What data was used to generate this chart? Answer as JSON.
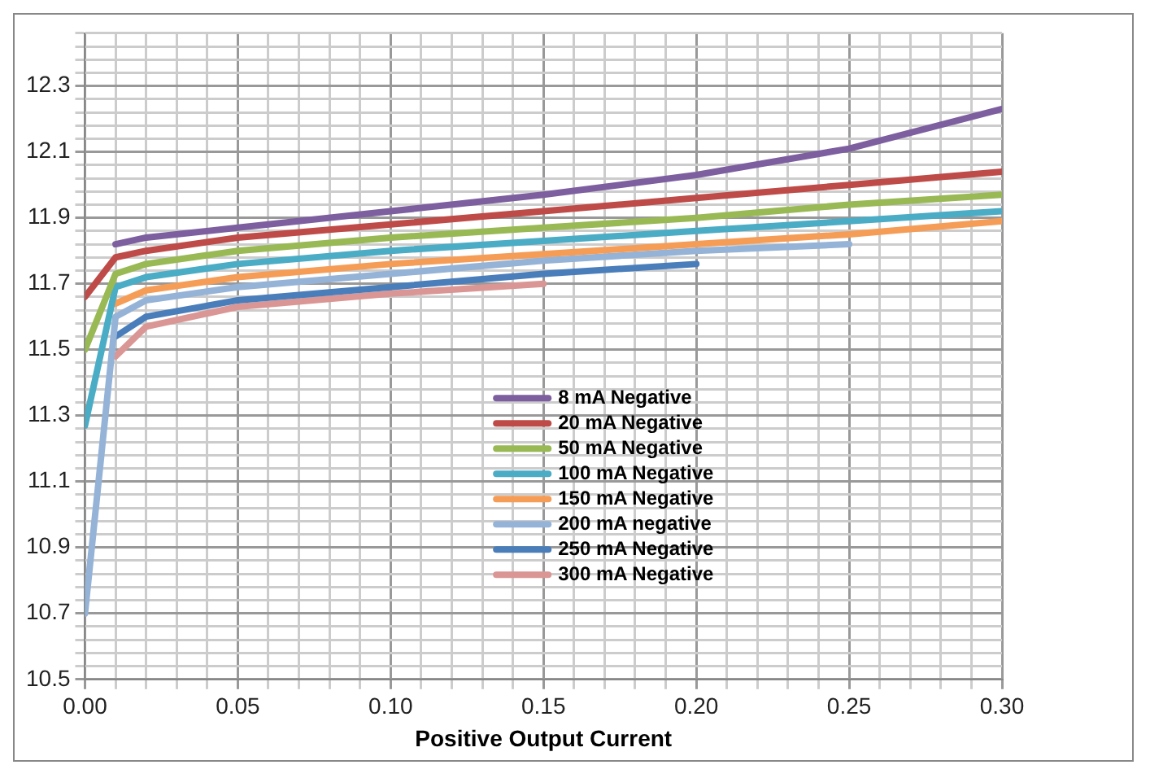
{
  "chart_data": {
    "type": "line",
    "xlabel": "Positive Output Current",
    "xlim": [
      0,
      0.3
    ],
    "xticks": [
      {
        "value": 0,
        "label": "0.00"
      },
      {
        "value": 0.01,
        "label": null
      },
      {
        "value": 0.02,
        "label": null
      },
      {
        "value": 0.03,
        "label": null
      },
      {
        "value": 0.04,
        "label": null
      },
      {
        "value": 0.05,
        "label": "0.05"
      },
      {
        "value": 0.06,
        "label": null
      },
      {
        "value": 0.07,
        "label": null
      },
      {
        "value": 0.08,
        "label": null
      },
      {
        "value": 0.09,
        "label": null
      },
      {
        "value": 0.1,
        "label": "0.10"
      },
      {
        "value": 0.11,
        "label": null
      },
      {
        "value": 0.12,
        "label": null
      },
      {
        "value": 0.13,
        "label": null
      },
      {
        "value": 0.14,
        "label": null
      },
      {
        "value": 0.15,
        "label": "0.15"
      },
      {
        "value": 0.16,
        "label": null
      },
      {
        "value": 0.17,
        "label": null
      },
      {
        "value": 0.18,
        "label": null
      },
      {
        "value": 0.19,
        "label": null
      },
      {
        "value": 0.2,
        "label": "0.20"
      },
      {
        "value": 0.21,
        "label": null
      },
      {
        "value": 0.22,
        "label": null
      },
      {
        "value": 0.23,
        "label": null
      },
      {
        "value": 0.24,
        "label": null
      },
      {
        "value": 0.25,
        "label": "0.25"
      },
      {
        "value": 0.26,
        "label": null
      },
      {
        "value": 0.27,
        "label": null
      },
      {
        "value": 0.28,
        "label": null
      },
      {
        "value": 0.29,
        "label": null
      },
      {
        "value": 0.3,
        "label": "0.30"
      }
    ],
    "ylim": [
      10.5,
      12.46
    ],
    "yticks": [
      10.5,
      {
        "value": 10.54,
        "label": null
      },
      {
        "value": 10.58,
        "label": null
      },
      {
        "value": 10.62,
        "label": null
      },
      {
        "value": 10.66,
        "label": null
      },
      10.7,
      {
        "value": 10.74,
        "label": null
      },
      {
        "value": 10.78,
        "label": null
      },
      {
        "value": 10.82,
        "label": null
      },
      {
        "value": 10.86,
        "label": null
      },
      10.9,
      {
        "value": 10.94,
        "label": null
      },
      {
        "value": 10.98,
        "label": null
      },
      {
        "value": 11.02,
        "label": null
      },
      {
        "value": 11.06,
        "label": null
      },
      11.1,
      {
        "value": 11.14,
        "label": null
      },
      {
        "value": 11.18,
        "label": null
      },
      {
        "value": 11.22,
        "label": null
      },
      {
        "value": 11.26,
        "label": null
      },
      11.3,
      {
        "value": 11.34,
        "label": null
      },
      {
        "value": 11.38,
        "label": null
      },
      {
        "value": 11.42,
        "label": null
      },
      {
        "value": 11.46,
        "label": null
      },
      11.5,
      {
        "value": 11.54,
        "label": null
      },
      {
        "value": 11.58,
        "label": null
      },
      {
        "value": 11.62,
        "label": null
      },
      {
        "value": 11.66,
        "label": null
      },
      11.7,
      {
        "value": 11.74,
        "label": null
      },
      {
        "value": 11.78,
        "label": null
      },
      {
        "value": 11.82,
        "label": null
      },
      {
        "value": 11.86,
        "label": null
      },
      11.9,
      {
        "value": 11.94,
        "label": null
      },
      {
        "value": 11.98,
        "label": null
      },
      {
        "value": 12.02,
        "label": null
      },
      {
        "value": 12.06,
        "label": null
      },
      12.1,
      {
        "value": 12.14,
        "label": null
      },
      {
        "value": 12.18,
        "label": null
      },
      {
        "value": 12.22,
        "label": null
      },
      {
        "value": 12.26,
        "label": null
      },
      12.3,
      {
        "value": 12.34,
        "label": null
      },
      {
        "value": 12.38,
        "label": null
      },
      {
        "value": 12.42,
        "label": null
      },
      {
        "value": 12.46,
        "label": null
      }
    ],
    "grid": true,
    "legend": "center",
    "marker": "none",
    "line_style": "solid",
    "series": [
      {
        "name": "8 mA Negative",
        "color": "#7d5fa0",
        "x": [
          0.01,
          0.02,
          0.05,
          0.1,
          0.15,
          0.2,
          0.25,
          0.3
        ],
        "values": [
          11.82,
          11.84,
          11.87,
          11.92,
          11.97,
          12.03,
          12.11,
          12.23
        ]
      },
      {
        "name": "20 mA Negative",
        "color": "#be4b48",
        "x": [
          0,
          0.01,
          0.02,
          0.05,
          0.1,
          0.15,
          0.2,
          0.25,
          0.3
        ],
        "values": [
          11.66,
          11.78,
          11.8,
          11.84,
          11.88,
          11.92,
          11.96,
          12.0,
          12.04
        ]
      },
      {
        "name": "50 mA Negative",
        "color": "#98b954",
        "x": [
          0,
          0.01,
          0.02,
          0.05,
          0.1,
          0.15,
          0.2,
          0.25,
          0.3
        ],
        "values": [
          11.5,
          11.73,
          11.76,
          11.8,
          11.84,
          11.87,
          11.9,
          11.94,
          11.97
        ]
      },
      {
        "name": "100 mA Negative",
        "color": "#4aacc5",
        "x": [
          0,
          0.01,
          0.02,
          0.05,
          0.1,
          0.15,
          0.2,
          0.25,
          0.3
        ],
        "values": [
          11.27,
          11.69,
          11.72,
          11.76,
          11.8,
          11.83,
          11.86,
          11.89,
          11.92
        ]
      },
      {
        "name": "150 mA Negative",
        "color": "#f59d56",
        "x": [
          0.01,
          0.02,
          0.05,
          0.1,
          0.15,
          0.2,
          0.25,
          0.3
        ],
        "values": [
          11.64,
          11.68,
          11.72,
          11.76,
          11.79,
          11.82,
          11.85,
          11.89
        ]
      },
      {
        "name": "200 mA negative",
        "color": "#95b3d7",
        "x": [
          0,
          0.01,
          0.02,
          0.05,
          0.1,
          0.15,
          0.2,
          0.25
        ],
        "values": [
          10.7,
          11.6,
          11.65,
          11.69,
          11.73,
          11.77,
          11.8,
          11.82
        ]
      },
      {
        "name": "250 mA Negative",
        "color": "#4a7ebb",
        "x": [
          0.01,
          0.02,
          0.05,
          0.1,
          0.15,
          0.2
        ],
        "values": [
          11.54,
          11.6,
          11.65,
          11.69,
          11.73,
          11.76
        ]
      },
      {
        "name": "300 mA Negative",
        "color": "#da9694",
        "x": [
          0.01,
          0.02,
          0.05,
          0.1,
          0.15
        ],
        "values": [
          11.48,
          11.57,
          11.63,
          11.67,
          11.7
        ]
      }
    ]
  }
}
